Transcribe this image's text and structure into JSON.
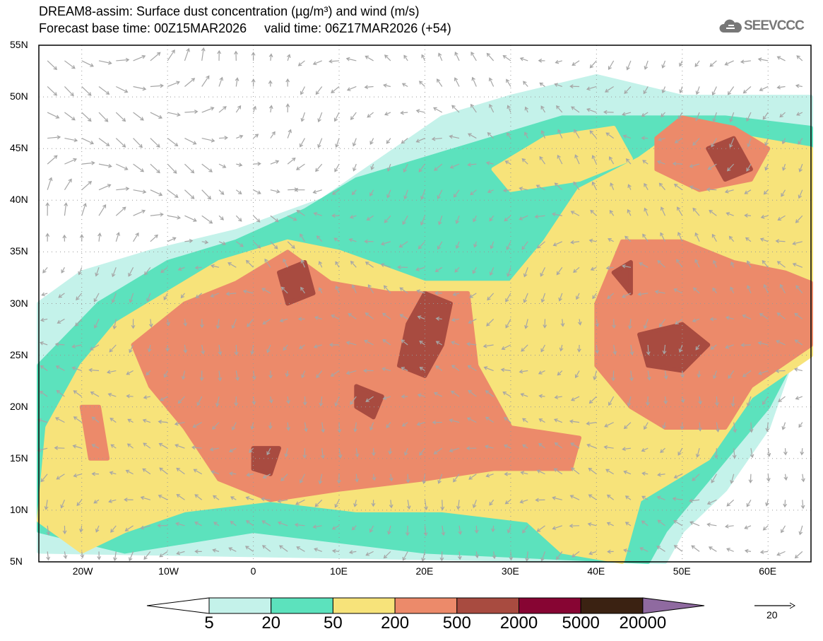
{
  "title": {
    "line1": "DREAM8-assim: Surface dust concentration (µg/m³) and wind (m/s)",
    "line2": "Forecast base time: 00Z15MAR2026     valid time: 06Z17MAR2026 (+54)"
  },
  "logo": {
    "text": "SEEVCCC",
    "icon": "cloud-icon"
  },
  "axes": {
    "lat_labels": [
      "55N",
      "50N",
      "45N",
      "40N",
      "35N",
      "30N",
      "25N",
      "20N",
      "15N",
      "10N",
      "5N"
    ],
    "lon_labels": [
      "20W",
      "10W",
      "0",
      "10E",
      "20E",
      "30E",
      "40E",
      "50E",
      "60E"
    ]
  },
  "colorbar": {
    "labels": [
      "5",
      "20",
      "50",
      "200",
      "500",
      "2000",
      "5000",
      "20000"
    ],
    "colors": [
      "#ffffff",
      "#c4f2ea",
      "#5ce2bd",
      "#f7e37a",
      "#ec8a6a",
      "#a84b40",
      "#870533",
      "#3b2212",
      "#8f6aa0"
    ]
  },
  "wind_reference": {
    "value": "20"
  }
}
